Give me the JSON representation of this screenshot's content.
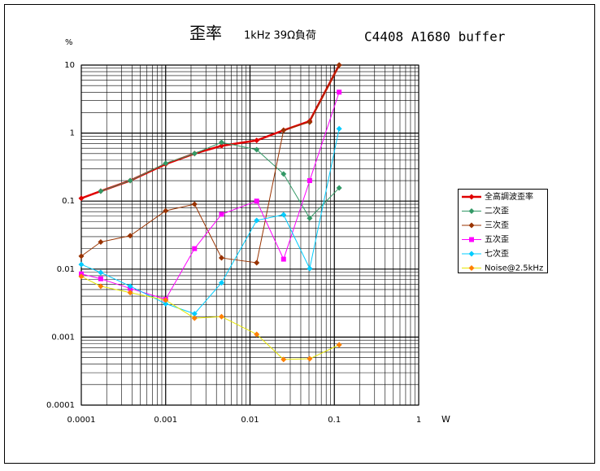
{
  "chart_data": {
    "type": "line",
    "title": "歪率",
    "subtitle": "1kHz 39Ω負荷",
    "annotation": "C4408 A1680  buffer",
    "y_label": "%",
    "x_label": "W",
    "log_x": true,
    "log_y": true,
    "grid": true,
    "legend": "right",
    "xlim": [
      0.0001,
      1
    ],
    "xticks": [
      0.0001,
      0.001,
      0.01,
      0.1,
      1
    ],
    "ylim": [
      0.0001,
      10
    ],
    "yticks": [
      0.0001,
      0.001,
      0.01,
      0.1,
      1,
      10
    ],
    "x": [
      0.0001,
      0.00017,
      0.00038,
      0.001,
      0.0022,
      0.0046,
      0.012,
      0.025,
      0.051,
      0.114
    ],
    "series": [
      {
        "name": "全高調波歪率",
        "color": "#e00000",
        "marker": "diamond",
        "width": 2.5,
        "values": [
          0.11,
          0.14,
          0.2,
          0.35,
          0.5,
          0.65,
          0.78,
          1.1,
          1.5,
          10
        ]
      },
      {
        "name": "二次歪",
        "color": "#339966",
        "marker": "diamond",
        "width": 1,
        "values": [
          null,
          0.14,
          0.2,
          0.36,
          0.5,
          0.73,
          0.57,
          0.25,
          0.056,
          0.156
        ]
      },
      {
        "name": "三次歪",
        "color": "#993300",
        "marker": "diamond",
        "width": 1,
        "values": [
          0.0155,
          0.025,
          0.031,
          0.072,
          0.09,
          0.0146,
          0.0124,
          1.1,
          1.45,
          10
        ]
      },
      {
        "name": "五次歪",
        "color": "#ff00ff",
        "marker": "square",
        "width": 1,
        "values": [
          0.0085,
          0.0072,
          0.0052,
          0.0036,
          0.02,
          0.064,
          0.1,
          0.014,
          0.2,
          4
        ]
      },
      {
        "name": "七次歪",
        "color": "#00ccff",
        "marker": "diamond",
        "width": 1,
        "values": [
          0.0117,
          0.0089,
          0.0056,
          0.0031,
          0.0022,
          0.0063,
          0.052,
          0.063,
          0.0102,
          1.16
        ]
      },
      {
        "name": "Noise@2.5kHz",
        "color": "#ff8000",
        "line_color": "#e6e600",
        "marker": "diamond",
        "width": 1,
        "values": [
          0.0078,
          0.0056,
          0.0045,
          0.0035,
          0.0019,
          0.002,
          0.0011,
          0.00047,
          0.00048,
          0.00077
        ]
      }
    ]
  }
}
